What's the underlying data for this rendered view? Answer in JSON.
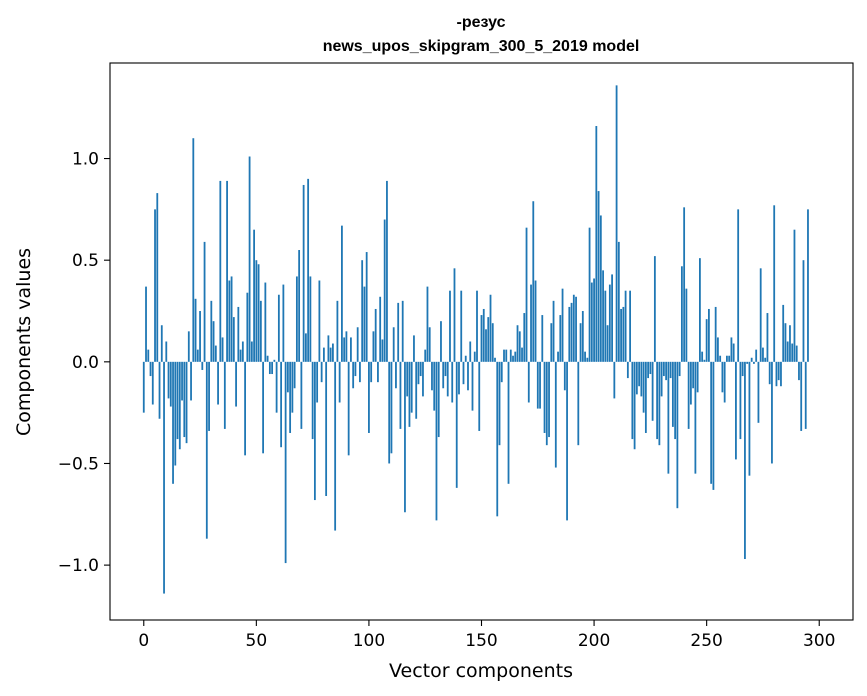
{
  "chart_data": {
    "type": "bar",
    "title": "-резус",
    "subtitle": "news_upos_skipgram_300_5_2019 model",
    "xlabel": "Vector components",
    "ylabel": "Components values",
    "xlim": [
      -15,
      315
    ],
    "ylim": [
      -1.27,
      1.47
    ],
    "xticks": [
      0,
      50,
      100,
      150,
      200,
      250,
      300
    ],
    "xtick_labels": [
      "0",
      "50",
      "100",
      "150",
      "200",
      "250",
      "300"
    ],
    "yticks": [
      -1.0,
      -0.5,
      0.0,
      0.5,
      1.0
    ],
    "ytick_labels": [
      "−1.0",
      "−0.5",
      "0.0",
      "0.5",
      "1.0"
    ],
    "grid": false,
    "bar_color": "#1f77b4",
    "values": [
      -0.25,
      0.37,
      0.06,
      -0.07,
      -0.21,
      0.75,
      0.83,
      -0.28,
      0.18,
      -1.14,
      0.1,
      -0.18,
      -0.22,
      -0.6,
      -0.51,
      -0.38,
      -0.43,
      -0.19,
      -0.37,
      -0.4,
      0.15,
      -0.19,
      1.1,
      0.31,
      0.06,
      0.25,
      -0.04,
      0.59,
      -0.87,
      -0.34,
      0.3,
      0.2,
      0.08,
      -0.21,
      0.89,
      0.12,
      -0.33,
      0.89,
      0.4,
      0.42,
      0.22,
      -0.22,
      0.27,
      0.06,
      0.1,
      -0.46,
      0.34,
      1.01,
      0.1,
      0.65,
      0.5,
      0.48,
      0.3,
      -0.45,
      0.39,
      0.03,
      -0.06,
      -0.06,
      0.01,
      -0.25,
      0.33,
      -0.42,
      0.38,
      -0.99,
      -0.15,
      -0.35,
      -0.25,
      -0.13,
      0.42,
      0.55,
      -0.33,
      0.87,
      0.14,
      0.9,
      0.42,
      -0.38,
      -0.68,
      -0.2,
      0.4,
      -0.1,
      0.07,
      -0.66,
      0.13,
      0.07,
      0.09,
      -0.83,
      0.3,
      -0.2,
      0.67,
      0.12,
      0.15,
      -0.46,
      0.12,
      -0.13,
      -0.07,
      0.17,
      -0.1,
      0.5,
      0.37,
      0.54,
      -0.35,
      -0.1,
      0.15,
      0.26,
      -0.1,
      0.32,
      0.11,
      0.7,
      0.89,
      -0.5,
      -0.45,
      0.17,
      -0.13,
      0.29,
      -0.33,
      0.3,
      -0.74,
      -0.17,
      -0.32,
      -0.25,
      0.13,
      -0.28,
      -0.11,
      -0.07,
      -0.17,
      0.06,
      0.37,
      0.17,
      -0.14,
      -0.24,
      -0.78,
      -0.37,
      0.2,
      -0.13,
      -0.07,
      -0.17,
      0.35,
      -0.2,
      0.46,
      -0.62,
      -0.16,
      0.35,
      -0.11,
      0.03,
      -0.14,
      0.1,
      -0.24,
      0.05,
      0.35,
      -0.34,
      0.23,
      0.26,
      0.16,
      0.22,
      0.33,
      0.19,
      0.02,
      -0.76,
      -0.41,
      -0.1,
      0.06,
      0.06,
      -0.6,
      0.06,
      0.03,
      0.05,
      0.18,
      0.15,
      0.07,
      0.24,
      0.66,
      -0.2,
      0.38,
      0.79,
      0.4,
      -0.23,
      -0.23,
      0.23,
      -0.35,
      -0.41,
      -0.37,
      0.19,
      0.3,
      -0.52,
      0.05,
      0.23,
      0.36,
      -0.14,
      -0.78,
      0.27,
      0.29,
      0.33,
      0.32,
      -0.41,
      0.19,
      0.25,
      0.05,
      0.02,
      0.66,
      0.39,
      0.41,
      1.16,
      0.84,
      0.72,
      0.45,
      0.35,
      0.18,
      0.38,
      0.43,
      -0.18,
      1.36,
      0.59,
      0.26,
      0.27,
      0.35,
      -0.08,
      0.35,
      -0.38,
      -0.43,
      -0.16,
      -0.12,
      -0.17,
      -0.25,
      -0.35,
      -0.08,
      -0.06,
      -0.29,
      0.52,
      -0.38,
      -0.41,
      -0.17,
      -0.07,
      -0.09,
      -0.55,
      -0.08,
      -0.32,
      -0.38,
      -0.72,
      -0.07,
      0.47,
      0.76,
      0.36,
      -0.33,
      -0.21,
      -0.13,
      -0.55,
      -0.15,
      0.51,
      0.05,
      0.01,
      0.21,
      0.26,
      -0.6,
      -0.63,
      0.27,
      0.12,
      0.03,
      -0.15,
      -0.2,
      0.03,
      0.03,
      0.12,
      0.09,
      -0.48,
      0.75,
      -0.38,
      -0.07,
      -0.97,
      -0.01,
      -0.56,
      0.02,
      -0.01,
      0.06,
      -0.3,
      0.46,
      0.07,
      0.02,
      0.24,
      -0.11,
      -0.5,
      0.77,
      -0.12,
      -0.09,
      -0.12,
      0.28,
      0.19,
      0.1,
      0.18,
      0.09,
      0.65,
      0.08,
      -0.09,
      -0.34,
      0.5,
      -0.33,
      0.75
    ]
  }
}
